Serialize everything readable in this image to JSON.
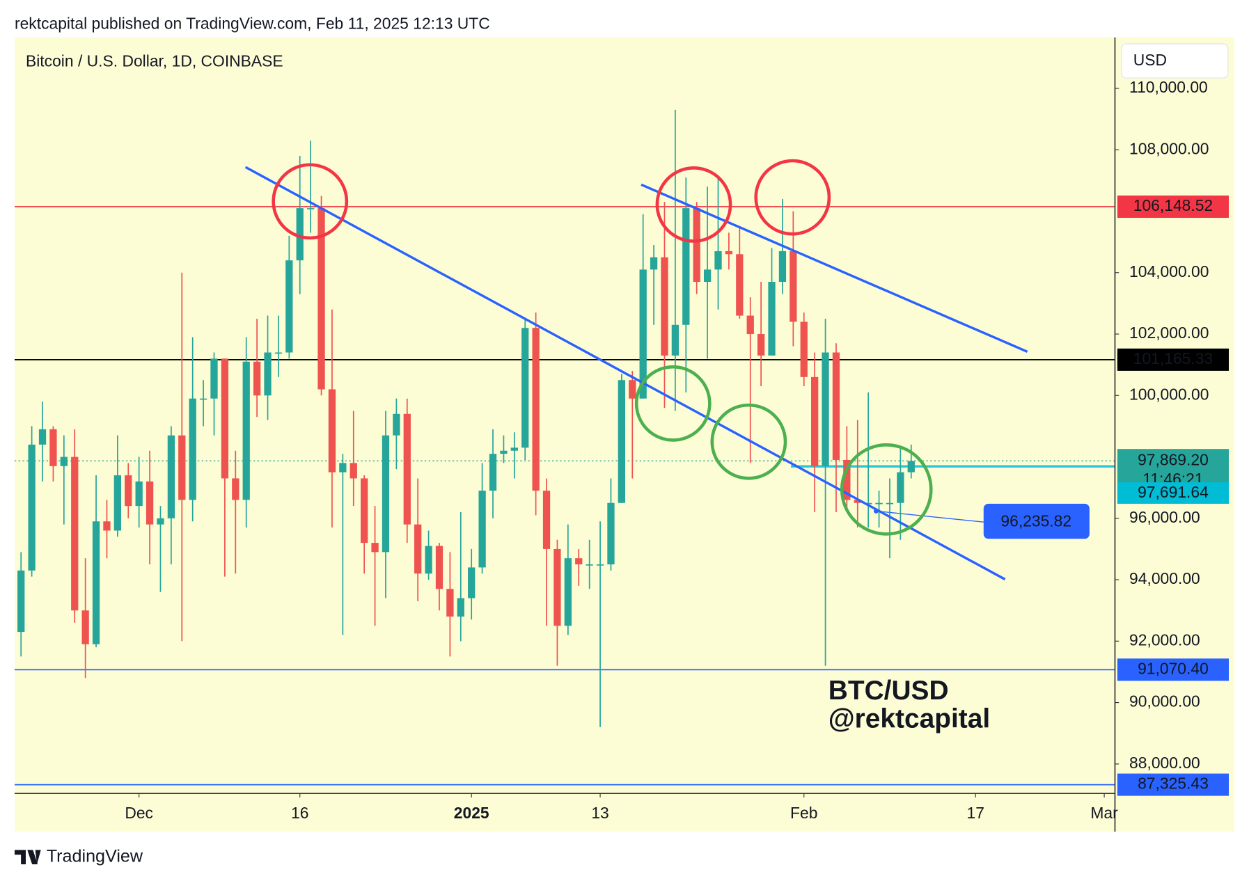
{
  "header": "rektcapital published on TradingView.com, Feb 11, 2025 12:13 UTC",
  "footer": "TradingView",
  "chart_data": {
    "type": "candlestick",
    "title": "Bitcoin / U.S. Dollar, 1D, COINBASE",
    "currency": "USD",
    "up_color": "#26a69a",
    "down_color": "#ef5350",
    "x": [
      0,
      1,
      2,
      3,
      4,
      5,
      6,
      7,
      8,
      9,
      10,
      11,
      12,
      13,
      14,
      15,
      16,
      17,
      18,
      19,
      20,
      21,
      22,
      23,
      24,
      25,
      26,
      27,
      28,
      29,
      30,
      31,
      32,
      33,
      34,
      35,
      36,
      37,
      38,
      39,
      40,
      41,
      42,
      43,
      44,
      45,
      46,
      47,
      48,
      49,
      50,
      51,
      52,
      53,
      54,
      55,
      56,
      57,
      58,
      59,
      60,
      61,
      62,
      63,
      64,
      65,
      66,
      67,
      68,
      69,
      70,
      71,
      72,
      73,
      74,
      75,
      76,
      77,
      78,
      79,
      80,
      81,
      82,
      83
    ],
    "open": [
      92300,
      94300,
      98400,
      98900,
      97700,
      98000,
      93000,
      91900,
      95900,
      95600,
      97400,
      96400,
      97200,
      95800,
      96000,
      98700,
      96600,
      99900,
      99900,
      101200,
      97300,
      96600,
      101100,
      100000,
      101400,
      101400,
      104400,
      106100,
      106100,
      100200,
      97500,
      97800,
      97300,
      95200,
      94900,
      98700,
      99400,
      95800,
      94200,
      95100,
      93700,
      92800,
      93400,
      94400,
      96900,
      98100,
      98200,
      98300,
      102200,
      96900,
      95000,
      92500,
      94700,
      94500,
      94500,
      94500,
      96500,
      100500,
      99900,
      104100,
      104500,
      101300,
      102300,
      106100,
      103700,
      104100,
      104700,
      104600,
      102600,
      102000,
      101300,
      103700,
      104700,
      102400,
      100600,
      97700,
      101400,
      97900,
      96600,
      96500,
      96500,
      96500,
      96500,
      97500
    ],
    "high": [
      94900,
      99000,
      99800,
      99000,
      98700,
      98900,
      94700,
      97400,
      96600,
      98700,
      97800,
      98000,
      98200,
      96400,
      99000,
      104000,
      101900,
      100500,
      101400,
      101200,
      98200,
      101900,
      102500,
      102600,
      102600,
      105200,
      107800,
      108300,
      106500,
      102800,
      98100,
      99500,
      97400,
      96400,
      99500,
      99900,
      99900,
      97300,
      95600,
      95200,
      94900,
      96200,
      95000,
      97800,
      98900,
      98700,
      98800,
      102500,
      102700,
      97300,
      95300,
      95800,
      95000,
      95300,
      95900,
      97300,
      100700,
      100800,
      105900,
      104900,
      106300,
      109300,
      107100,
      106300,
      106800,
      107100,
      105300,
      105500,
      103200,
      103700,
      104800,
      106400,
      106000,
      102700,
      101400,
      102500,
      101700,
      99000,
      99200,
      100100,
      96900,
      97300,
      98300,
      98400
    ],
    "low": [
      91500,
      94100,
      97200,
      97200,
      95800,
      92600,
      90800,
      91800,
      94700,
      95400,
      96000,
      95700,
      94500,
      93600,
      94500,
      92000,
      95900,
      99000,
      98700,
      94100,
      94200,
      95700,
      99300,
      99200,
      100600,
      101200,
      103300,
      105300,
      100000,
      95700,
      92200,
      96400,
      94200,
      92500,
      93400,
      97600,
      95200,
      93300,
      94000,
      93000,
      91500,
      92000,
      92700,
      94200,
      96000,
      97800,
      97300,
      97900,
      96100,
      92500,
      91200,
      92200,
      93800,
      93700,
      89200,
      94300,
      96500,
      97300,
      99900,
      102300,
      99600,
      99500,
      100100,
      103300,
      101200,
      102800,
      104100,
      102500,
      97800,
      100300,
      101300,
      103300,
      101600,
      100300,
      96200,
      91200,
      96200,
      96200,
      95700,
      95700,
      95700,
      94700,
      95300,
      97300
    ],
    "close": [
      94300,
      98400,
      98900,
      97700,
      98000,
      93000,
      91900,
      95900,
      95600,
      97400,
      96400,
      97200,
      95800,
      96000,
      98700,
      96600,
      99900,
      99900,
      101200,
      97300,
      96600,
      101100,
      100000,
      101400,
      101400,
      104400,
      106100,
      106100,
      100200,
      97500,
      97800,
      97300,
      95200,
      94900,
      98700,
      99400,
      95800,
      94200,
      95100,
      93700,
      92800,
      93400,
      94400,
      96900,
      98100,
      98200,
      98300,
      102200,
      96900,
      95000,
      92500,
      94700,
      94500,
      94500,
      94500,
      96500,
      100500,
      99900,
      104100,
      104500,
      101300,
      102300,
      106100,
      103700,
      104100,
      104700,
      104600,
      102600,
      102000,
      101300,
      103700,
      104700,
      102400,
      100600,
      97700,
      101400,
      97900,
      96600,
      96500,
      96500,
      96500,
      96500,
      97500,
      97869.2
    ],
    "xlim": [
      -0.6,
      102
    ],
    "xticks": [
      {
        "value": 11,
        "label": "Dec"
      },
      {
        "value": 26,
        "label": "16"
      },
      {
        "value": 42,
        "label": "2025"
      },
      {
        "value": 54,
        "label": "13"
      },
      {
        "value": 73,
        "label": "Feb"
      },
      {
        "value": 89,
        "label": "17"
      },
      {
        "value": 101,
        "label": "Mar"
      }
    ],
    "ylim": [
      87040,
      111660
    ],
    "yticks": [
      {
        "value": 88000,
        "label": "88,000.00"
      },
      {
        "value": 90000,
        "label": "90,000.00"
      },
      {
        "value": 92000,
        "label": "92,000.00"
      },
      {
        "value": 94000,
        "label": "94,000.00"
      },
      {
        "value": 96000,
        "label": "96,000.00"
      },
      {
        "value": 100000,
        "label": "100,000.00"
      },
      {
        "value": 102000,
        "label": "102,000.00"
      },
      {
        "value": 104000,
        "label": "104,000.00"
      },
      {
        "value": 108000,
        "label": "108,000.00"
      },
      {
        "value": 110000,
        "label": "110,000.00"
      }
    ],
    "price_lines": [
      {
        "value": 106148.52,
        "label": "106,148.52",
        "color": "#f23645"
      },
      {
        "value": 101165.33,
        "label": "101,165.33",
        "color": "#000000"
      },
      {
        "value": 91070.4,
        "label": "91,070.40",
        "color": "#2962ff"
      },
      {
        "value": 87325.43,
        "label": "87,325.43",
        "color": "#2962ff"
      }
    ],
    "last_price": {
      "value": 97869.2,
      "label": "97,869.20",
      "countdown": "11:46:21",
      "color": "#26a69a"
    },
    "level": {
      "value": 97691.64,
      "label": "97,691.64",
      "color": "#00bcd4"
    },
    "callout": {
      "value": 96235.82,
      "label": "96,235.82",
      "color": "#2962ff"
    },
    "watermark": [
      "BTC/USD",
      "@rektcapital"
    ]
  }
}
